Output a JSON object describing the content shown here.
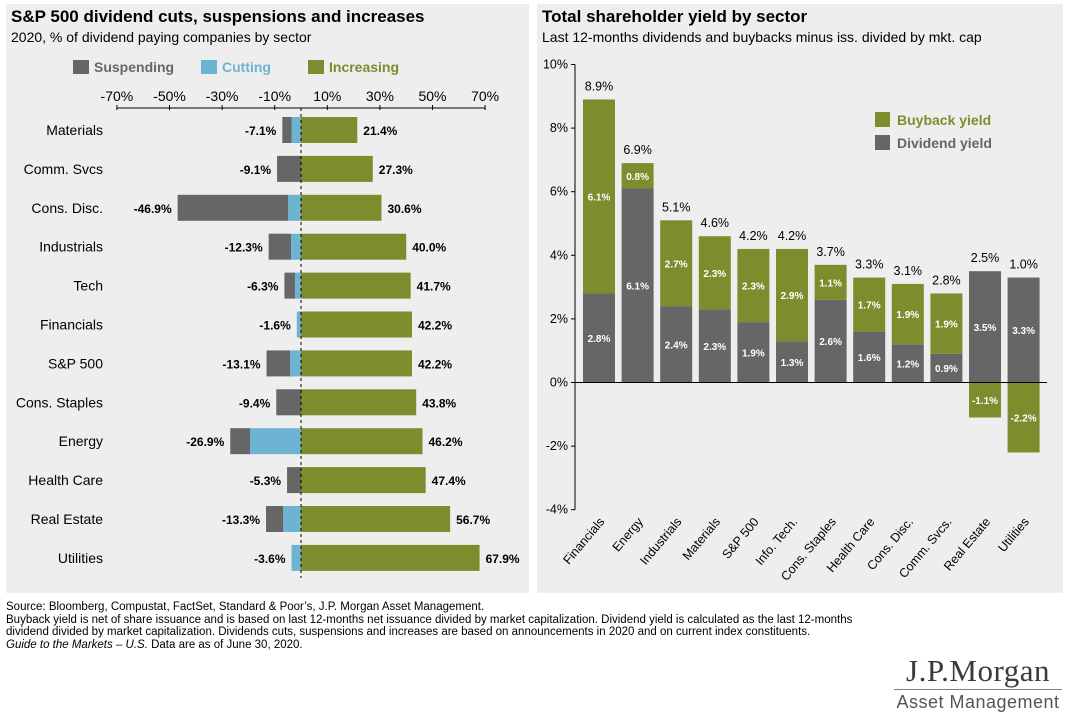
{
  "colors": {
    "suspending": "#666666",
    "cutting": "#6fb3d2",
    "increasing": "#7f8c2d",
    "buyback": "#7f8c2d",
    "dividend": "#666666",
    "panel_bg": "#eeeeee"
  },
  "left": {
    "title": "S&P 500 dividend cuts, suspensions and increases",
    "subtitle": "2020, % of dividend paying companies by sector"
  },
  "right": {
    "title": "Total shareholder yield by sector",
    "subtitle": "Last 12-months dividends and buybacks minus iss. divided by mkt. cap"
  },
  "chart_data": [
    {
      "type": "bar",
      "orientation": "horizontal",
      "stacked": true,
      "legend": [
        "Suspending",
        "Cutting",
        "Increasing"
      ],
      "legend_position": "top",
      "x_ticks": [
        "-70%",
        "-50%",
        "-30%",
        "-10%",
        "10%",
        "30%",
        "50%",
        "70%"
      ],
      "xlim": [
        -70,
        70
      ],
      "categories": [
        "Materials",
        "Comm. Svcs",
        "Cons. Disc.",
        "Industrials",
        "Tech",
        "Financials",
        "S&P 500",
        "Cons. Staples",
        "Energy",
        "Health Care",
        "Real Estate",
        "Utilities"
      ],
      "series": [
        {
          "name": "Suspending",
          "values": [
            -3.5,
            -9.1,
            -42.0,
            -8.5,
            -4.0,
            0,
            -9.0,
            -9.4,
            -7.5,
            -5.3,
            -6.5,
            0
          ]
        },
        {
          "name": "Cutting",
          "values": [
            -3.6,
            0,
            -4.9,
            -3.8,
            -2.3,
            -1.6,
            -4.1,
            0,
            -19.4,
            0,
            -6.8,
            -3.6
          ]
        },
        {
          "name": "Increasing",
          "values": [
            21.4,
            27.3,
            30.6,
            40.0,
            41.7,
            42.2,
            42.2,
            43.8,
            46.2,
            47.4,
            56.7,
            67.9
          ]
        }
      ],
      "neg_labels": [
        "-7.1%",
        "-9.1%",
        "-46.9%",
        "-12.3%",
        "-6.3%",
        "-1.6%",
        "-13.1%",
        "-9.4%",
        "-26.9%",
        "-5.3%",
        "-13.3%",
        "-3.6%"
      ],
      "pos_labels": [
        "21.4%",
        "27.3%",
        "30.6%",
        "40.0%",
        "41.7%",
        "42.2%",
        "42.2%",
        "43.8%",
        "46.2%",
        "47.4%",
        "56.7%",
        "67.9%"
      ]
    },
    {
      "type": "bar",
      "stacked": true,
      "legend": [
        "Buyback yield",
        "Dividend yield"
      ],
      "legend_position": "top-right",
      "ylim": [
        -4,
        10
      ],
      "y_ticks": [
        "-4%",
        "-2%",
        "0%",
        "2%",
        "4%",
        "6%",
        "8%",
        "10%"
      ],
      "categories": [
        "Financials",
        "Energy",
        "Industrials",
        "Materials",
        "S&P 500",
        "Info. Tech.",
        "Cons. Staples",
        "Health Care",
        "Cons. Disc.",
        "Comm. Svcs.",
        "Real Estate",
        "Utilities"
      ],
      "series": [
        {
          "name": "Dividend yield",
          "values": [
            2.8,
            6.1,
            2.4,
            2.3,
            1.9,
            1.3,
            2.6,
            1.6,
            1.2,
            0.9,
            3.5,
            3.3
          ]
        },
        {
          "name": "Buyback yield",
          "values": [
            6.1,
            0.8,
            2.7,
            2.3,
            2.3,
            2.9,
            1.1,
            1.7,
            1.9,
            1.9,
            -1.1,
            -2.2
          ]
        }
      ],
      "dividend_labels": [
        "2.8%",
        "6.1%",
        "2.4%",
        "2.3%",
        "1.9%",
        "1.3%",
        "2.6%",
        "1.6%",
        "1.2%",
        "0.9%",
        "3.5%",
        "3.3%"
      ],
      "buyback_labels": [
        "6.1%",
        "0.8%",
        "2.7%",
        "2.3%",
        "2.3%",
        "2.9%",
        "1.1%",
        "1.7%",
        "1.9%",
        "1.9%",
        "-1.1%",
        "-2.2%"
      ],
      "total_labels": [
        "8.9%",
        "6.9%",
        "5.1%",
        "4.6%",
        "4.2%",
        "4.2%",
        "3.7%",
        "3.3%",
        "3.1%",
        "2.8%",
        "2.5%",
        "1.0%"
      ]
    }
  ],
  "footer": {
    "source": "Source: Bloomberg, Compustat, FactSet, Standard & Poor’s, J.P. Morgan Asset Management.",
    "note": "Buyback yield is net of share issuance and is based on last 12-months net issuance divided by market capitalization. Dividend yield is calculated as the last 12-months dividend divided by market capitalization. Dividends cuts, suspensions and increases are based on announcements in 2020 and on current index constituents.",
    "guide_italic": "Guide to the Markets – U.S.",
    "guide_rest": " Data are as of June 30, 2020."
  },
  "logo": {
    "name": "J.P.Morgan",
    "sub": "Asset Management"
  }
}
